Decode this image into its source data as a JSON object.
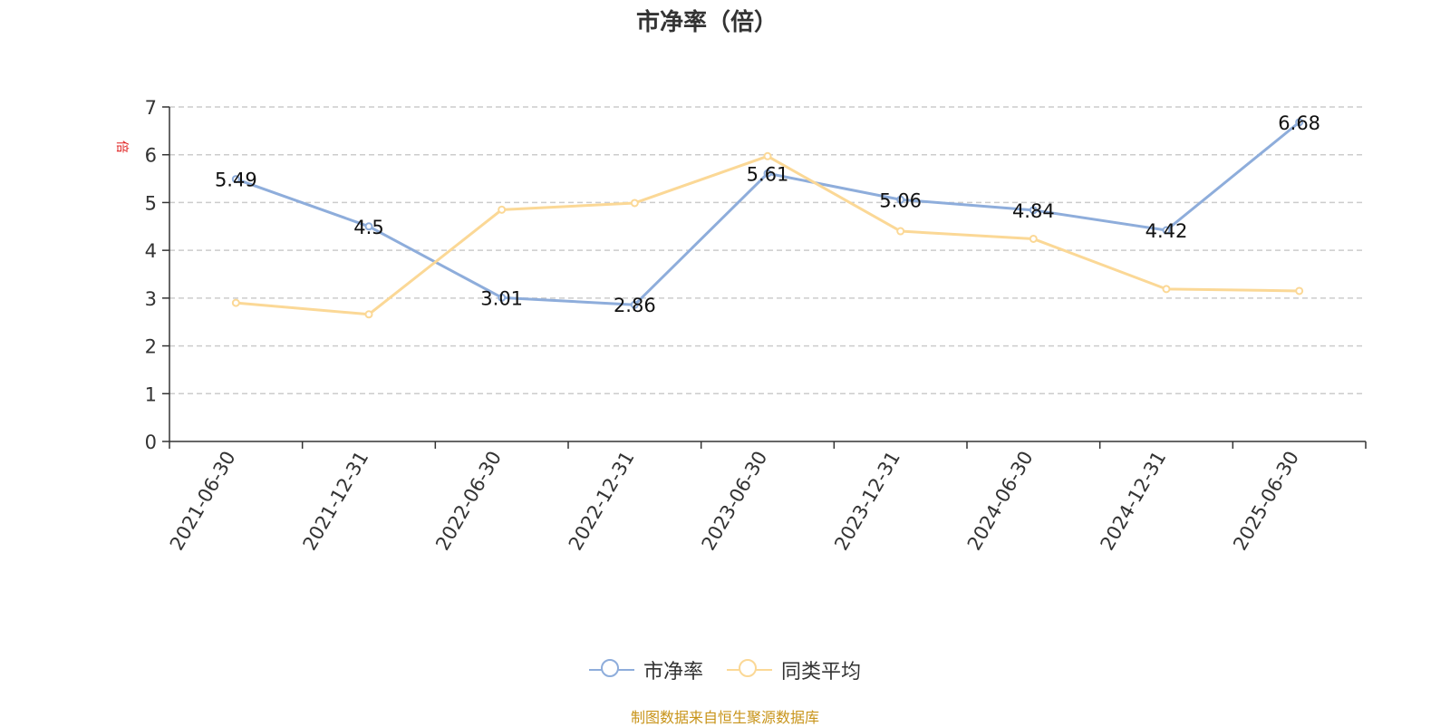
{
  "chart_data": {
    "type": "line",
    "title": "市净率（倍）",
    "ylabel": "倍",
    "xlabel": "",
    "ylim": [
      0,
      7
    ],
    "yticks": [
      0,
      1,
      2,
      3,
      4,
      5,
      6,
      7
    ],
    "grid": true,
    "legend_position": "bottom-center",
    "categories": [
      "2021-06-30",
      "2021-12-31",
      "2022-06-30",
      "2022-12-31",
      "2023-06-30",
      "2023-12-31",
      "2024-06-30",
      "2024-12-31",
      "2025-06-30"
    ],
    "series": [
      {
        "name": "市净率",
        "color": "#8eaddb",
        "values": [
          5.49,
          4.5,
          3.01,
          2.86,
          5.61,
          5.06,
          4.84,
          4.42,
          6.68
        ],
        "labels": [
          "5.49",
          "4.5",
          "3.01",
          "2.86",
          "5.61",
          "5.06",
          "4.84",
          "4.42",
          "6.68"
        ]
      },
      {
        "name": "同类平均",
        "color": "#fbd896",
        "values": [
          2.9,
          2.66,
          4.85,
          4.99,
          5.97,
          4.4,
          4.24,
          3.19,
          3.15
        ]
      }
    ],
    "source": "制图数据来自恒生聚源数据库"
  }
}
